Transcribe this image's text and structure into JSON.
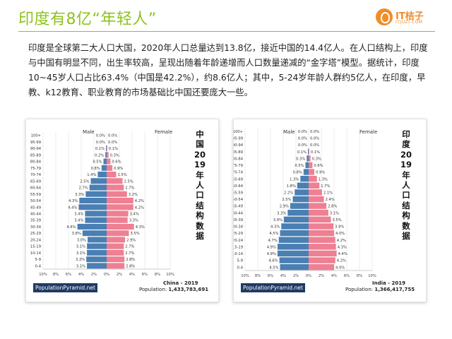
{
  "title": "印度有8亿“年轻人”",
  "logo": {
    "name": "IT桔子",
    "sub": "ITJUZI.COM"
  },
  "paragraph": "印度是全球第二大人口大国，2020年人口总量达到13.8亿，接近中国的14.4亿人。在人口结构上，印度与中国有明显不同，出生率较高，呈现出随着年龄递增而人口数量递减的“金字塔”模型。据统计，印度10~45岁人口占比63.4%（中国是42.2%），约8.6亿人；其中，5-24岁年龄人群约5亿人，在印度，早教、k12教育、职业教育的市场基础比中国还要庞大一些。",
  "colors": {
    "accent": "#8dc21f",
    "male": "#4a7fb3",
    "female": "#ef7f92",
    "badge": "#1f3a64",
    "logo": "#f28c28"
  },
  "chart_data": [
    {
      "type": "bar",
      "title": "中国2019年人口结构数据",
      "male_label": "Male",
      "female_label": "Female",
      "source": "PopulationPyramid.net",
      "country_year": "China - 2019",
      "population_label": "Population:",
      "population": "1,433,783,691",
      "categories": [
        "100+",
        "95-99",
        "90-94",
        "85-89",
        "80-84",
        "75-79",
        "70-74",
        "65-69",
        "60-64",
        "55-59",
        "50-54",
        "45-49",
        "40-44",
        "35-39",
        "30-34",
        "25-29",
        "20-24",
        "15-19",
        "10-14",
        "5-9",
        "0-4"
      ],
      "series": [
        {
          "name": "Male",
          "values": [
            0.0,
            0.0,
            0.1,
            0.2,
            0.5,
            0.8,
            1.4,
            2.5,
            2.7,
            3.3,
            4.3,
            4.4,
            3.4,
            3.4,
            4.6,
            3.8,
            3.0,
            3.1,
            3.1,
            3.2,
            3.1
          ],
          "labels": [
            "0.0%",
            "0.0%",
            "0.1%",
            "0.2%",
            "0.5%",
            "0.8%",
            "1.4%",
            "2.5%",
            "2.7%",
            "3.3%",
            "4.3%",
            "4.4%",
            "3.4%",
            "3.4%",
            "4.6%",
            "3.8%",
            "3.0%",
            "3.1%",
            "3.1%",
            "3.2%",
            "3.1%"
          ]
        },
        {
          "name": "Female",
          "values": [
            0.0,
            0.0,
            0.1,
            0.3,
            0.6,
            0.9,
            1.5,
            2.5,
            2.7,
            3.2,
            4.2,
            4.2,
            3.4,
            3.3,
            4.3,
            3.5,
            2.9,
            2.7,
            2.7,
            2.8,
            2.8
          ],
          "labels": [
            "0.0%",
            "0.0%",
            "0.1%",
            "0.3%",
            "0.6%",
            "0.9%",
            "1.5%",
            "2.5%",
            "2.7%",
            "3.2%",
            "4.2%",
            "4.2%",
            "3.4%",
            "3.3%",
            "4.3%",
            "3.5%",
            "2.9%",
            "2.7%",
            "2.7%",
            "2.8%",
            "2.8%"
          ]
        }
      ],
      "x_ticks": [
        "10%",
        "8%",
        "6%",
        "4%",
        "2%",
        "0%",
        "2%",
        "4%",
        "6%",
        "8%",
        "10%"
      ],
      "xlim": [
        -10,
        10
      ]
    },
    {
      "type": "bar",
      "title": "印度2019年人口结构数据",
      "male_label": "Male",
      "female_label": "Female",
      "source": "PopulationPyramid.net",
      "country_year": "India - 2019",
      "population_label": "Population:",
      "population": "1,366,417,755",
      "categories": [
        "100+",
        "95-99",
        "90-94",
        "85-89",
        "80-84",
        "75-79",
        "70-74",
        "65-69",
        "60-64",
        "55-59",
        "50-54",
        "45-49",
        "40-44",
        "35-39",
        "30-34",
        "25-29",
        "20-24",
        "15-19",
        "10-14",
        "5-9",
        "0-4"
      ],
      "series": [
        {
          "name": "Male",
          "values": [
            0.0,
            0.0,
            0.0,
            0.1,
            0.3,
            0.5,
            0.8,
            1.3,
            1.8,
            2.2,
            2.5,
            2.9,
            3.3,
            3.9,
            4.3,
            4.5,
            4.7,
            4.9,
            4.9,
            4.6,
            4.5
          ],
          "labels": [
            "0.0%",
            "0.0%",
            "0.0%",
            "0.1%",
            "0.3%",
            "0.5%",
            "0.8%",
            "1.3%",
            "1.8%",
            "2.2%",
            "2.5%",
            "2.9%",
            "3.3%",
            "3.9%",
            "4.3%",
            "4.5%",
            "4.7%",
            "4.9%",
            "4.9%",
            "4.6%",
            "4.5%"
          ]
        },
        {
          "name": "Female",
          "values": [
            0.0,
            0.0,
            0.0,
            0.1,
            0.3,
            0.6,
            0.9,
            1.3,
            1.7,
            2.1,
            2.4,
            2.8,
            3.1,
            3.5,
            3.9,
            4.0,
            4.2,
            4.3,
            4.4,
            4.2,
            4.0
          ],
          "labels": [
            "0.0%",
            "0.0%",
            "0.0%",
            "0.1%",
            "0.3%",
            "0.6%",
            "0.9%",
            "1.3%",
            "1.7%",
            "2.1%",
            "2.4%",
            "2.8%",
            "3.1%",
            "3.5%",
            "3.9%",
            "4.0%",
            "4.2%",
            "4.3%",
            "4.4%",
            "4.2%",
            "4.0%"
          ]
        }
      ],
      "x_ticks": [
        "10%",
        "8%",
        "6%",
        "4%",
        "2%",
        "0%",
        "2%",
        "4%",
        "6%",
        "8%",
        "10%"
      ],
      "xlim": [
        -10,
        10
      ]
    }
  ]
}
